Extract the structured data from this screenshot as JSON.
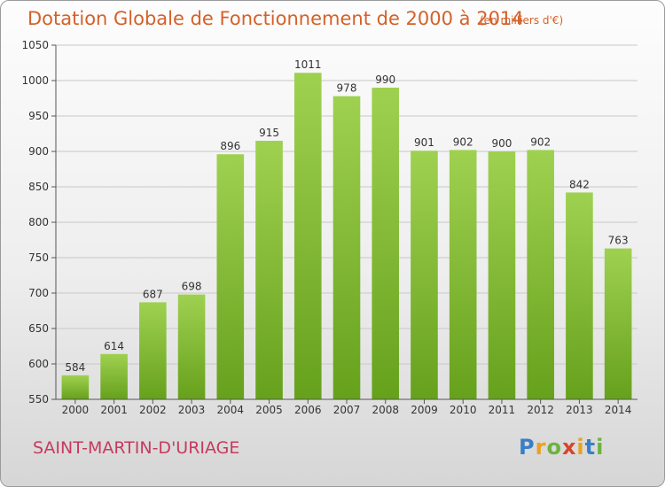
{
  "chart_data": {
    "type": "bar",
    "title": "Dotation Globale de Fonctionnement de 2000 à 2014",
    "subtitle": "(en milliers d'€)",
    "categories": [
      "2000",
      "2001",
      "2002",
      "2003",
      "2004",
      "2005",
      "2006",
      "2007",
      "2008",
      "2009",
      "2010",
      "2011",
      "2012",
      "2013",
      "2014"
    ],
    "values": [
      584,
      614,
      687,
      698,
      896,
      915,
      1011,
      978,
      990,
      901,
      902,
      900,
      902,
      842,
      763
    ],
    "ylim": [
      550,
      1050
    ],
    "yticks": [
      550,
      600,
      650,
      700,
      750,
      800,
      850,
      900,
      950,
      1000,
      1050
    ],
    "grid": true,
    "colors": {
      "bar_light": "#9fd150",
      "bar_dark": "#66a11c",
      "grid": "#c8c8c8",
      "text": "#333333"
    }
  },
  "footer": {
    "commune": "SAINT-MARTIN-D'URIAGE",
    "logo": "Proxiti"
  }
}
